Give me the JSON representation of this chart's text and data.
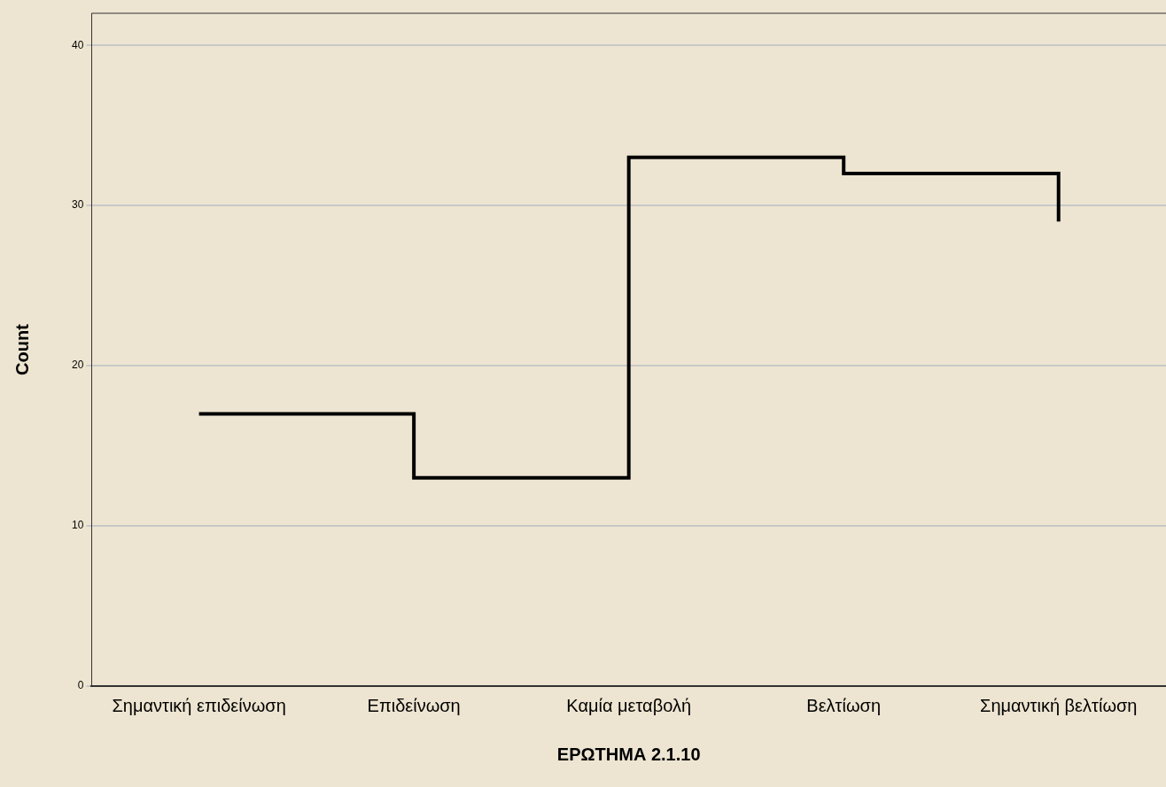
{
  "chart_data": {
    "type": "step",
    "xlabel": "ΕΡΩΤΗΜΑ 2.1.10",
    "ylabel": "Count",
    "categories": [
      "Σημαντική επιδείνωση",
      "Επιδείνωση",
      "Καμία μεταβολή",
      "Βελτίωση",
      "Σημαντική βελτίωση"
    ],
    "series": [
      {
        "color": "#000000",
        "values": [
          17,
          13,
          33,
          32,
          29
        ]
      }
    ],
    "ylim": [
      0,
      42
    ],
    "yticks": [
      0,
      10,
      20,
      30,
      40
    ],
    "grid": "y",
    "legend": false,
    "marker": "none",
    "line_style": "solid"
  }
}
